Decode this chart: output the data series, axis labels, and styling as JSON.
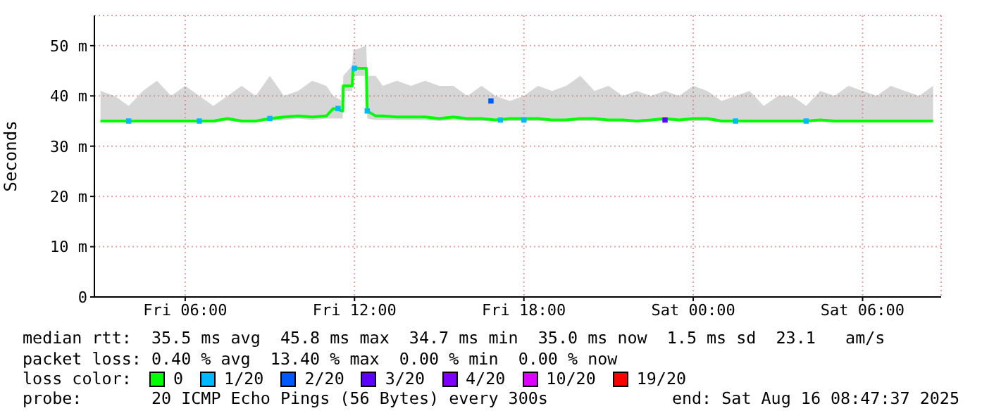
{
  "chart_data": {
    "type": "line",
    "ylabel": "Seconds",
    "legend": "bottom",
    "legend_title": "loss color:",
    "grid": true,
    "xlim": [
      "2025-08-15T02:47",
      "2025-08-16T08:47"
    ],
    "xticks": [
      {
        "value": "2025-08-15T06:00",
        "label": "Fri 06:00"
      },
      {
        "value": "2025-08-15T12:00",
        "label": "Fri 12:00"
      },
      {
        "value": "2025-08-15T18:00",
        "label": "Fri 18:00"
      },
      {
        "value": "2025-08-16T00:00",
        "label": "Sat 00:00"
      },
      {
        "value": "2025-08-16T06:00",
        "label": "Sat 06:00"
      }
    ],
    "ylim": [
      0,
      56
    ],
    "yticks": [
      0,
      {
        "value": 10,
        "label": "10 m"
      },
      {
        "value": 20,
        "label": "20 m"
      },
      {
        "value": 30,
        "label": "30 m"
      },
      {
        "value": 40,
        "label": "40 m"
      },
      {
        "value": 50,
        "label": "50 m"
      }
    ],
    "x": [
      "2025-08-15T03:00",
      "2025-08-15T03:30",
      "2025-08-15T04:00",
      "2025-08-15T04:30",
      "2025-08-15T05:00",
      "2025-08-15T05:30",
      "2025-08-15T06:00",
      "2025-08-15T06:30",
      "2025-08-15T07:00",
      "2025-08-15T07:30",
      "2025-08-15T08:00",
      "2025-08-15T08:30",
      "2025-08-15T09:00",
      "2025-08-15T09:30",
      "2025-08-15T10:00",
      "2025-08-15T10:30",
      "2025-08-15T11:00",
      "2025-08-15T11:15",
      "2025-08-15T11:35",
      "2025-08-15T11:36",
      "2025-08-15T11:55",
      "2025-08-15T11:57",
      "2025-08-15T12:25",
      "2025-08-15T12:27",
      "2025-08-15T12:45",
      "2025-08-15T13:00",
      "2025-08-15T13:30",
      "2025-08-15T14:00",
      "2025-08-15T14:30",
      "2025-08-15T15:00",
      "2025-08-15T15:30",
      "2025-08-15T16:00",
      "2025-08-15T16:30",
      "2025-08-15T17:00",
      "2025-08-15T17:30",
      "2025-08-15T18:00",
      "2025-08-15T18:30",
      "2025-08-15T19:00",
      "2025-08-15T19:30",
      "2025-08-15T20:00",
      "2025-08-15T20:30",
      "2025-08-15T21:00",
      "2025-08-15T21:30",
      "2025-08-15T22:00",
      "2025-08-15T22:30",
      "2025-08-15T23:00",
      "2025-08-15T23:30",
      "2025-08-16T00:00",
      "2025-08-16T00:30",
      "2025-08-16T01:00",
      "2025-08-16T01:30",
      "2025-08-16T02:00",
      "2025-08-16T02:30",
      "2025-08-16T03:00",
      "2025-08-16T03:30",
      "2025-08-16T04:00",
      "2025-08-16T04:30",
      "2025-08-16T05:00",
      "2025-08-16T05:30",
      "2025-08-16T06:00",
      "2025-08-16T06:30",
      "2025-08-16T07:00",
      "2025-08-16T07:30",
      "2025-08-16T08:00",
      "2025-08-16T08:30"
    ],
    "series": [
      {
        "name": "0",
        "marker": "none",
        "color": "#00ff00",
        "values": [
          35,
          35,
          35,
          35,
          35,
          35,
          35,
          35,
          35,
          35.5,
          35,
          35,
          35.5,
          35.8,
          36,
          35.8,
          36,
          37.5,
          37,
          42,
          42,
          45.5,
          45.5,
          37,
          36,
          36,
          35.8,
          35.8,
          35.8,
          35.5,
          35.8,
          35.5,
          35.5,
          35.2,
          35.5,
          35.5,
          35.5,
          35.2,
          35.2,
          35.5,
          35.5,
          35.2,
          35.2,
          35,
          35.2,
          35.5,
          35.2,
          35.5,
          35.5,
          35,
          35,
          35,
          35,
          35,
          35,
          35,
          35.2,
          35,
          35,
          35,
          35,
          35,
          35,
          35,
          35
        ],
        "lower": [
          35,
          35,
          35,
          35,
          35,
          35,
          35,
          35,
          35,
          35,
          35,
          35,
          35,
          35.2,
          35.5,
          35.2,
          35.5,
          35.5,
          35.5,
          41,
          41,
          44,
          44,
          35.5,
          35.2,
          35.2,
          35.2,
          35.2,
          35.2,
          35,
          35.2,
          35,
          35,
          35,
          35,
          35,
          35,
          35,
          35,
          35,
          35,
          35,
          35,
          35,
          35,
          35,
          35,
          35,
          35,
          35,
          35,
          35,
          35,
          35,
          35,
          35,
          35,
          35,
          35,
          35,
          35,
          35,
          35,
          35,
          35
        ],
        "upper": [
          41,
          40,
          38,
          41,
          43,
          40,
          42,
          40,
          38,
          40,
          42,
          40,
          44,
          40,
          41,
          43,
          42,
          40,
          39,
          44,
          46,
          49,
          50,
          44,
          44,
          42,
          43,
          42,
          43,
          42,
          42,
          40,
          42,
          40,
          39,
          40,
          42,
          41,
          42,
          44,
          41,
          42,
          40,
          41,
          40,
          41,
          40,
          42,
          41,
          39,
          40,
          41,
          38,
          40,
          40,
          38,
          41,
          40,
          42,
          41,
          40,
          42,
          41,
          40,
          42
        ]
      },
      {
        "name": "1/20",
        "type": "scatter",
        "marker": "square",
        "color": "#00b8ff",
        "x": [
          "2025-08-15T04:00",
          "2025-08-15T06:30",
          "2025-08-15T09:00",
          "2025-08-15T11:25",
          "2025-08-15T12:00",
          "2025-08-15T12:27",
          "2025-08-15T17:10",
          "2025-08-15T18:00",
          "2025-08-16T01:30",
          "2025-08-16T04:00"
        ],
        "values": [
          35,
          35,
          35.5,
          37.5,
          45.5,
          37,
          35.2,
          35.2,
          35,
          35
        ]
      },
      {
        "name": "2/20",
        "type": "scatter",
        "marker": "square",
        "color": "#0059ff",
        "x": [
          "2025-08-15T16:50"
        ],
        "values": [
          39
        ]
      },
      {
        "name": "3/20",
        "type": "scatter",
        "marker": "square",
        "color": "#5e00ff",
        "x": [
          "2025-08-15T23:00"
        ],
        "values": [
          35.2
        ]
      },
      {
        "name": "4/20",
        "type": "scatter",
        "marker": "square",
        "color": "#7e00ff",
        "values": [
          null,
          null,
          null,
          null,
          null,
          null,
          null,
          null,
          null,
          null,
          null,
          null,
          null,
          null,
          null,
          null,
          null,
          null,
          null,
          null,
          null,
          null,
          null,
          null,
          null,
          null,
          null,
          null,
          null,
          null,
          null,
          null,
          null,
          null,
          null,
          null,
          null,
          null,
          null,
          null,
          null,
          null,
          null,
          null,
          null,
          null,
          null,
          null,
          null,
          null,
          null,
          null,
          null,
          null,
          null,
          null,
          null,
          null,
          null,
          null,
          null,
          null,
          null,
          null,
          null
        ]
      },
      {
        "name": "10/20",
        "type": "scatter",
        "marker": "square",
        "color": "#dd00ff",
        "values": [
          null,
          null,
          null,
          null,
          null,
          null,
          null,
          null,
          null,
          null,
          null,
          null,
          null,
          null,
          null,
          null,
          null,
          null,
          null,
          null,
          null,
          null,
          null,
          null,
          null,
          null,
          null,
          null,
          null,
          null,
          null,
          null,
          null,
          null,
          null,
          null,
          null,
          null,
          null,
          null,
          null,
          null,
          null,
          null,
          null,
          null,
          null,
          null,
          null,
          null,
          null,
          null,
          null,
          null,
          null,
          null,
          null,
          null,
          null,
          null,
          null,
          null,
          null,
          null,
          null
        ]
      },
      {
        "name": "19/20",
        "type": "scatter",
        "marker": "square",
        "color": "#ff0000",
        "values": [
          null,
          null,
          null,
          null,
          null,
          null,
          null,
          null,
          null,
          null,
          null,
          null,
          null,
          null,
          null,
          null,
          null,
          null,
          null,
          null,
          null,
          null,
          null,
          null,
          null,
          null,
          null,
          null,
          null,
          null,
          null,
          null,
          null,
          null,
          null,
          null,
          null,
          null,
          null,
          null,
          null,
          null,
          null,
          null,
          null,
          null,
          null,
          null,
          null,
          null,
          null,
          null,
          null,
          null,
          null,
          null,
          null,
          null,
          null,
          null,
          null,
          null,
          null,
          null,
          null
        ]
      }
    ],
    "annotations": [
      "median rtt:  35.5 ms avg  45.8 ms max  34.7 ms min  35.0 ms now  1.5 ms sd  23.1   am/s",
      "packet loss: 0.40 % avg  13.40 % max  0.00 % min  0.00 % now",
      "probe:       20 ICMP Echo Pings (56 Bytes) every 300s",
      "end: Sat Aug 16 08:47:37 2025"
    ]
  }
}
